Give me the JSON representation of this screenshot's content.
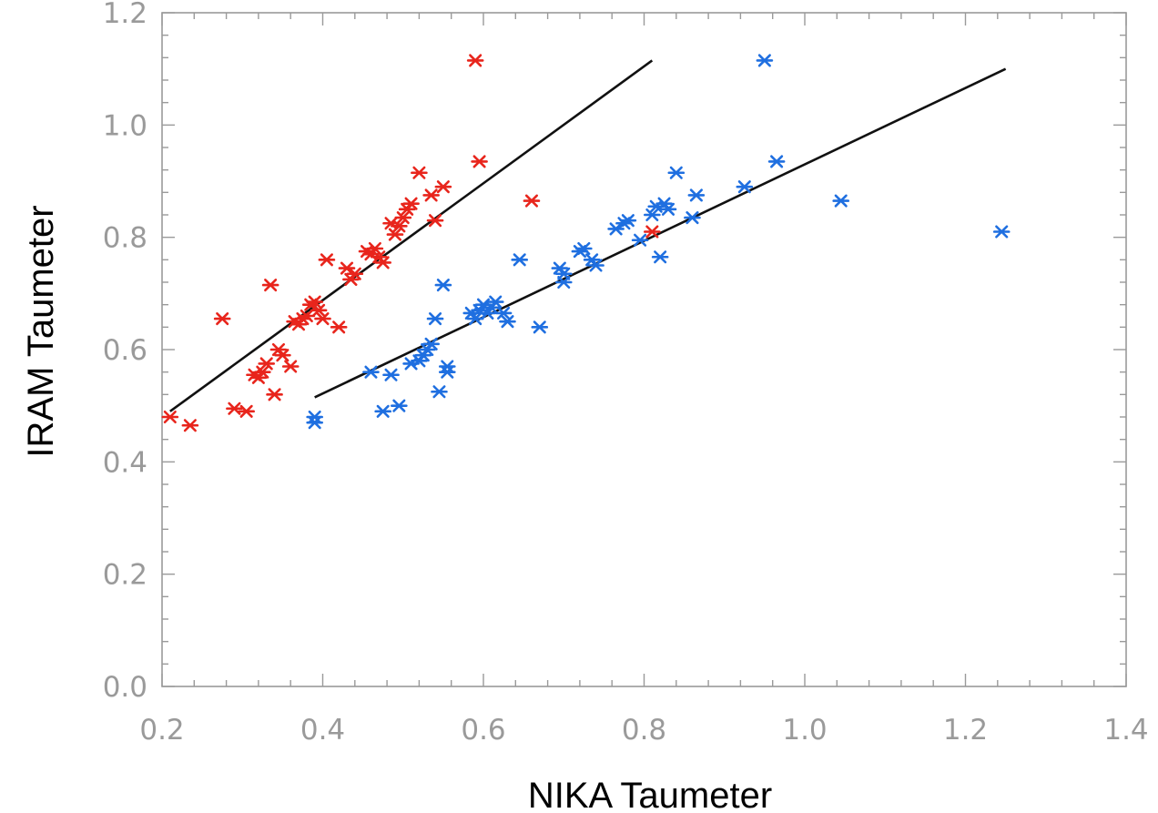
{
  "chart_data": {
    "type": "scatter",
    "title": "",
    "xlabel": "NIKA Taumeter",
    "ylabel": "IRAM Taumeter",
    "xlim": [
      0.2,
      1.4
    ],
    "ylim": [
      0.0,
      1.2
    ],
    "x_ticks": [
      "0.2",
      "0.4",
      "0.6",
      "0.8",
      "1.0",
      "1.2",
      "1.4"
    ],
    "y_ticks": [
      "0.0",
      "0.2",
      "0.4",
      "0.6",
      "0.8",
      "1.0",
      "1.2"
    ],
    "marker": "asterisk",
    "grid": false,
    "series": [
      {
        "color": "#e8251c",
        "points": [
          [
            0.21,
            0.48
          ],
          [
            0.235,
            0.465
          ],
          [
            0.275,
            0.655
          ],
          [
            0.29,
            0.495
          ],
          [
            0.305,
            0.49
          ],
          [
            0.315,
            0.555
          ],
          [
            0.32,
            0.55
          ],
          [
            0.325,
            0.56
          ],
          [
            0.33,
            0.575
          ],
          [
            0.335,
            0.715
          ],
          [
            0.34,
            0.52
          ],
          [
            0.345,
            0.6
          ],
          [
            0.35,
            0.59
          ],
          [
            0.36,
            0.57
          ],
          [
            0.365,
            0.65
          ],
          [
            0.37,
            0.645
          ],
          [
            0.375,
            0.655
          ],
          [
            0.38,
            0.66
          ],
          [
            0.385,
            0.68
          ],
          [
            0.39,
            0.685
          ],
          [
            0.395,
            0.67
          ],
          [
            0.4,
            0.655
          ],
          [
            0.405,
            0.76
          ],
          [
            0.42,
            0.64
          ],
          [
            0.43,
            0.745
          ],
          [
            0.435,
            0.725
          ],
          [
            0.44,
            0.735
          ],
          [
            0.455,
            0.775
          ],
          [
            0.46,
            0.77
          ],
          [
            0.465,
            0.78
          ],
          [
            0.47,
            0.765
          ],
          [
            0.475,
            0.755
          ],
          [
            0.485,
            0.825
          ],
          [
            0.49,
            0.805
          ],
          [
            0.495,
            0.82
          ],
          [
            0.5,
            0.835
          ],
          [
            0.505,
            0.85
          ],
          [
            0.51,
            0.86
          ],
          [
            0.52,
            0.915
          ],
          [
            0.535,
            0.875
          ],
          [
            0.54,
            0.83
          ],
          [
            0.55,
            0.89
          ],
          [
            0.59,
            1.115
          ],
          [
            0.595,
            0.935
          ],
          [
            0.66,
            0.865
          ],
          [
            0.81,
            0.81
          ]
        ]
      },
      {
        "color": "#1f6fe0",
        "points": [
          [
            0.39,
            0.47
          ],
          [
            0.39,
            0.48
          ],
          [
            0.46,
            0.56
          ],
          [
            0.475,
            0.49
          ],
          [
            0.485,
            0.555
          ],
          [
            0.495,
            0.5
          ],
          [
            0.51,
            0.575
          ],
          [
            0.52,
            0.58
          ],
          [
            0.525,
            0.59
          ],
          [
            0.53,
            0.6
          ],
          [
            0.535,
            0.61
          ],
          [
            0.54,
            0.655
          ],
          [
            0.545,
            0.525
          ],
          [
            0.55,
            0.715
          ],
          [
            0.555,
            0.56
          ],
          [
            0.555,
            0.57
          ],
          [
            0.585,
            0.665
          ],
          [
            0.59,
            0.655
          ],
          [
            0.595,
            0.67
          ],
          [
            0.6,
            0.68
          ],
          [
            0.605,
            0.665
          ],
          [
            0.61,
            0.675
          ],
          [
            0.615,
            0.685
          ],
          [
            0.625,
            0.665
          ],
          [
            0.63,
            0.65
          ],
          [
            0.645,
            0.76
          ],
          [
            0.67,
            0.64
          ],
          [
            0.695,
            0.745
          ],
          [
            0.7,
            0.735
          ],
          [
            0.7,
            0.72
          ],
          [
            0.72,
            0.775
          ],
          [
            0.725,
            0.78
          ],
          [
            0.735,
            0.76
          ],
          [
            0.74,
            0.75
          ],
          [
            0.765,
            0.815
          ],
          [
            0.775,
            0.825
          ],
          [
            0.78,
            0.83
          ],
          [
            0.795,
            0.795
          ],
          [
            0.81,
            0.84
          ],
          [
            0.815,
            0.855
          ],
          [
            0.82,
            0.765
          ],
          [
            0.825,
            0.86
          ],
          [
            0.83,
            0.85
          ],
          [
            0.84,
            0.915
          ],
          [
            0.86,
            0.835
          ],
          [
            0.865,
            0.875
          ],
          [
            0.925,
            0.89
          ],
          [
            0.95,
            1.115
          ],
          [
            0.965,
            0.935
          ],
          [
            1.045,
            0.865
          ],
          [
            1.245,
            0.81
          ]
        ]
      }
    ],
    "fit_lines": [
      {
        "color": "#111111",
        "from": [
          0.21,
          0.49
        ],
        "to": [
          0.81,
          1.115
        ]
      },
      {
        "color": "#111111",
        "from": [
          0.39,
          0.515
        ],
        "to": [
          1.25,
          1.1
        ]
      }
    ]
  }
}
